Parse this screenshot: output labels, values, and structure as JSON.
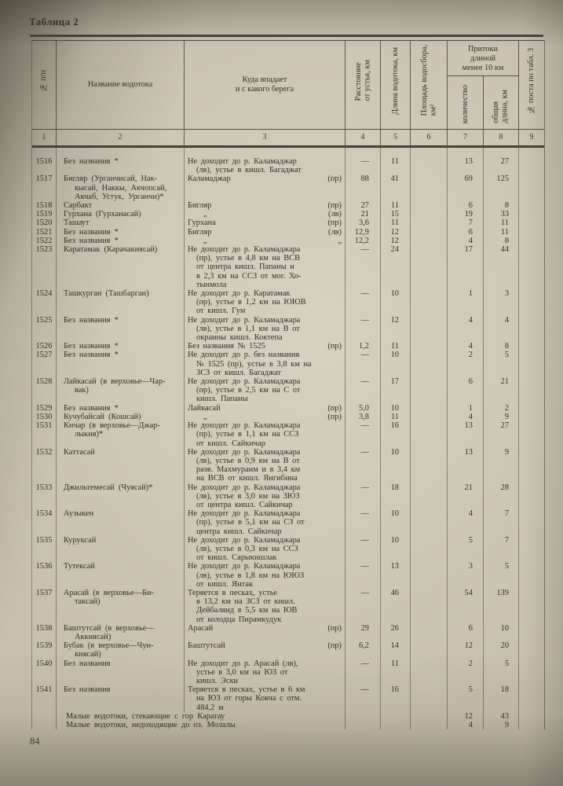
{
  "document": {
    "table_label": "Таблица 2",
    "page_number": "84"
  },
  "table": {
    "header": {
      "col_no": "№ п/п",
      "col_name": "Название водотока",
      "col_dest": "Куда впадает\nи с какого берега",
      "col_dist": "Расстояние\nот устья, км",
      "col_len": "Длина водотока, км",
      "col_area": "Площадь водосбора,\nкм²",
      "group_trib": "Притоки\nдлиной\nменее 10 км",
      "col_count": "количество",
      "col_total": "общая\nдлина, км",
      "col_post": "№ поста по табл. 3",
      "index_row": [
        "1",
        "2",
        "3",
        "4",
        "5",
        "6",
        "7",
        "8",
        "9"
      ]
    },
    "rows": [
      {
        "num": "1516",
        "name": "Без названия *",
        "dest": "Не доходит до р. Каламаджар\n(лв), устье в кишл. Багаджат",
        "bank": "",
        "dist": "—",
        "len": "11",
        "area": "",
        "cnt": "13",
        "tlen": "27",
        "post": ""
      },
      {
        "num": "1517",
        "name": "Бигляр (Урганчисай, Нак-\nкысай, Наккы, Акчопсай,\nАкчаб, Устук, Урганчи)*",
        "dest": "Каламаджар",
        "bank": "(пр)",
        "dist": "88",
        "len": "41",
        "area": "",
        "cnt": "69",
        "tlen": "125",
        "post": ""
      },
      {
        "num": "1518",
        "name": "Сарбакт",
        "dest": "Бигляр",
        "bank": "(пр)",
        "dist": "27",
        "len": "11",
        "area": "",
        "cnt": "6",
        "tlen": "8",
        "post": ""
      },
      {
        "num": "1519",
        "name": "Гурхана (Гурханасай)",
        "dest": "„",
        "bank": "(лв)",
        "dist": "21",
        "len": "15",
        "area": "",
        "cnt": "19",
        "tlen": "33",
        "post": ""
      },
      {
        "num": "1520",
        "name": "Ташаут",
        "dest": "Гурхана",
        "bank": "(пр)",
        "dist": "3,6",
        "len": "11",
        "area": "",
        "cnt": "7",
        "tlen": "11",
        "post": ""
      },
      {
        "num": "1521",
        "name": "Без названия *",
        "dest": "Бигляр",
        "bank": "(лв)",
        "dist": "12,9",
        "len": "12",
        "area": "",
        "cnt": "6",
        "tlen": "11",
        "post": ""
      },
      {
        "num": "1522",
        "name": "Без названия *",
        "dest": "„",
        "bank": "„",
        "dist": "12,2",
        "len": "12",
        "area": "",
        "cnt": "4",
        "tlen": "8",
        "post": ""
      },
      {
        "num": "1523",
        "name": "Каратамак (Карачакиясай)",
        "dest": "Не доходит до р. Каламаджара\n(пр), устье в 4,8 км на ВСВ\nот центра кишл. Папаны и\nв 2,3 км на ССЗ от мог. Хо-\nтынмола",
        "bank": "",
        "dist": "—",
        "len": "24",
        "area": "",
        "cnt": "17",
        "tlen": "44",
        "post": ""
      },
      {
        "num": "1524",
        "name": "Ташкурган (Ташбарган)",
        "dest": "Не доходит до р. Каратамак\n(пр), устье в 1,2 км на ЮЮВ\nот кишл. Гум",
        "bank": "",
        "dist": "—",
        "len": "10",
        "area": "",
        "cnt": "1",
        "tlen": "3",
        "post": ""
      },
      {
        "num": "1525",
        "name": "Без названия *",
        "dest": "Не доходит до р. Каламаджара\n(лв), устье в 1,1 км на В от\nокраины кишл. Коктепа",
        "bank": "",
        "dist": "—",
        "len": "12",
        "area": "",
        "cnt": "4",
        "tlen": "4",
        "post": ""
      },
      {
        "num": "1526",
        "name": "Без названия *",
        "dest": "Без названия № 1525",
        "bank": "(пр)",
        "dist": "1,2",
        "len": "11",
        "area": "",
        "cnt": "4",
        "tlen": "8",
        "post": ""
      },
      {
        "num": "1527",
        "name": "Без названия *",
        "dest": "Не доходит до р. без названия\n№ 1525 (пр), устье в 3,8 км на\nЗСЗ от кишл. Багаджат",
        "bank": "",
        "dist": "—",
        "len": "10",
        "area": "",
        "cnt": "2",
        "tlen": "5",
        "post": ""
      },
      {
        "num": "1528",
        "name": "Лайкасай (в верховье—Чар-\nвак)",
        "dest": "Не доходит до р. Каламаджара\n(пр), устье в 2,5 км на С от\nкишл. Папаны",
        "bank": "",
        "dist": "—",
        "len": "17",
        "area": "",
        "cnt": "6",
        "tlen": "21",
        "post": ""
      },
      {
        "num": "1529",
        "name": "Без названия *",
        "dest": "Лайкасай",
        "bank": "(пр)",
        "dist": "5,0",
        "len": "10",
        "area": "",
        "cnt": "1",
        "tlen": "2",
        "post": ""
      },
      {
        "num": "1530",
        "name": "Кучубайсай (Кошсай)",
        "dest": "„",
        "bank": "(пр)",
        "dist": "3,8",
        "len": "11",
        "area": "",
        "cnt": "4",
        "tlen": "9",
        "post": ""
      },
      {
        "num": "1531",
        "name": "Кичар (в верховье—Джар-\nлыкия)*",
        "dest": "Не доходит до р. Каламаджара\n(пр), устье в 1,1 км на ССЗ\nот кишл. Сайкичар",
        "bank": "",
        "dist": "—",
        "len": "16",
        "area": "",
        "cnt": "13",
        "tlen": "27",
        "post": ""
      },
      {
        "num": "1532",
        "name": "Каттасай",
        "dest": "Не доходит до р. Каламаджара\n(лв), устье в 0,9 км на В от\nразв. Махмураим и в 3,4 км\nна ВСВ от кишл. Янгибина",
        "bank": "",
        "dist": "—",
        "len": "10",
        "area": "",
        "cnt": "13",
        "tlen": "9",
        "post": ""
      },
      {
        "num": "1533",
        "name": "Джильтемесай (Чуясай)*",
        "dest": "Не доходит до р. Каламаджара\n(лв), устье в 3,0 км на ЗЮЗ\nот центра кишл. Сайкичар",
        "bank": "",
        "dist": "—",
        "len": "18",
        "area": "",
        "cnt": "21",
        "tlen": "28",
        "post": ""
      },
      {
        "num": "1534",
        "name": "Аузыкен",
        "dest": "Не доходит до р. Каламаджара\n(пр), устье в 5,1 км на СЗ от\nцентра кишл. Сайкичар",
        "bank": "",
        "dist": "—",
        "len": "10",
        "area": "",
        "cnt": "4",
        "tlen": "7",
        "post": ""
      },
      {
        "num": "1535",
        "name": "Куруксай",
        "dest": "Не доходит до р. Каламаджара\n(лв), устье в 0,3 км на ССЗ\nот кишл. Сарыкишлак",
        "bank": "",
        "dist": "—",
        "len": "10",
        "area": "",
        "cnt": "5",
        "tlen": "7",
        "post": ""
      },
      {
        "num": "1536",
        "name": "Тутексай",
        "dest": "Не доходит до р. Каламаджара\n(лв), устье в 1,8 км на ЮЮЗ\nот кишл. Янтак",
        "bank": "",
        "dist": "—",
        "len": "13",
        "area": "",
        "cnt": "3",
        "tlen": "5",
        "post": ""
      },
      {
        "num": "1537",
        "name": "Арасай (в верховье—Би-\nтаксай)",
        "dest": "Теряется в песках, устье\nв 13,2 км на ЗСЗ от кишл.\nДейбалянд в 5,5 км на ЮВ\nот колодца Пирамкудук",
        "bank": "",
        "dist": "—",
        "len": "46",
        "area": "",
        "cnt": "54",
        "tlen": "139",
        "post": ""
      },
      {
        "num": "1538",
        "name": "Баштутсай (в верховье—\nАккиясай)",
        "dest": "Арасай",
        "bank": "(пр)",
        "dist": "29",
        "len": "26",
        "area": "",
        "cnt": "6",
        "tlen": "10",
        "post": ""
      },
      {
        "num": "1539",
        "name": "Бубак (в верховье—Чун-\nкиясай)",
        "dest": "Баштутсай",
        "bank": "(пр)",
        "dist": "6,2",
        "len": "14",
        "area": "",
        "cnt": "12",
        "tlen": "20",
        "post": ""
      },
      {
        "num": "1540",
        "name": "Без названия",
        "dest": "Не доходит до р. Арасай (лв),\nустье в 3,0 км на ЮЗ от\nкишл. Эски",
        "bank": "",
        "dist": "—",
        "len": "11",
        "area": "",
        "cnt": "2",
        "tlen": "5",
        "post": ""
      },
      {
        "num": "1541",
        "name": "Без названия",
        "dest": "Теряется в песках, устье в 6 км\nна ЮЗ от горы Кокча с отм.\n484,2 м",
        "bank": "",
        "dist": "—",
        "len": "16",
        "area": "",
        "cnt": "5",
        "tlen": "18",
        "post": ""
      }
    ],
    "summary_rows": [
      {
        "label": "Малые водотоки, стекающие с гор Каратау",
        "cnt": "12",
        "tlen": "43"
      },
      {
        "label": "Малые водотоки, недоходящие до оз. Молалы",
        "cnt": "4",
        "tlen": "9"
      }
    ]
  }
}
